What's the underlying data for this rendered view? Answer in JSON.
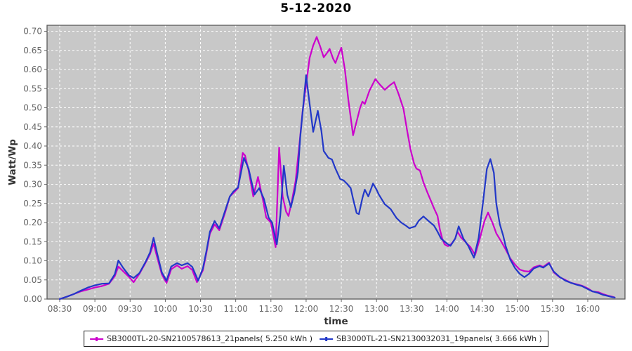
{
  "chart_data": {
    "type": "line",
    "title": "5-12-2020",
    "xlabel": "time",
    "ylabel": "Watt/Wp",
    "x_tick_labels": [
      "08:30",
      "09:00",
      "09:30",
      "10:00",
      "10:30",
      "11:00",
      "11:30",
      "12:00",
      "12:30",
      "13:00",
      "13:30",
      "14:00",
      "14:30",
      "15:00",
      "15:30",
      "16:00"
    ],
    "y_axis": {
      "min": 0.0,
      "max": 0.7,
      "step": 0.05
    },
    "grid": "on",
    "legend_position": "bottom",
    "colors": {
      "plot_background": "#C8C8C8",
      "gridline": "#FFFFFF",
      "axis_border": "#5A5A5A",
      "tick_label": "#666666",
      "axis_title": "#333333",
      "chart_title": "#000000"
    },
    "series": [
      {
        "name": "SB3000TL-20-SN2100578613_21panels( 5.250 kWh )",
        "color": "#CC00CC",
        "points": [
          [
            "08:30",
            0.0
          ],
          [
            "08:36",
            0.006
          ],
          [
            "08:42",
            0.013
          ],
          [
            "08:48",
            0.02
          ],
          [
            "08:54",
            0.025
          ],
          [
            "09:00",
            0.03
          ],
          [
            "09:06",
            0.034
          ],
          [
            "09:12",
            0.04
          ],
          [
            "09:17",
            0.06
          ],
          [
            "09:20",
            0.085
          ],
          [
            "09:24",
            0.073
          ],
          [
            "09:29",
            0.058
          ],
          [
            "09:33",
            0.044
          ],
          [
            "09:38",
            0.066
          ],
          [
            "09:43",
            0.094
          ],
          [
            "09:47",
            0.118
          ],
          [
            "09:50",
            0.145
          ],
          [
            "09:53",
            0.11
          ],
          [
            "09:57",
            0.065
          ],
          [
            "10:01",
            0.042
          ],
          [
            "10:05",
            0.078
          ],
          [
            "10:10",
            0.088
          ],
          [
            "10:14",
            0.079
          ],
          [
            "10:19",
            0.086
          ],
          [
            "10:23",
            0.076
          ],
          [
            "10:27",
            0.044
          ],
          [
            "10:32",
            0.075
          ],
          [
            "10:35",
            0.12
          ],
          [
            "10:38",
            0.171
          ],
          [
            "10:42",
            0.195
          ],
          [
            "10:46",
            0.18
          ],
          [
            "10:51",
            0.226
          ],
          [
            "10:55",
            0.268
          ],
          [
            "10:58",
            0.277
          ],
          [
            "11:02",
            0.29
          ],
          [
            "11:06",
            0.382
          ],
          [
            "11:08",
            0.375
          ],
          [
            "11:11",
            0.336
          ],
          [
            "11:15",
            0.268
          ],
          [
            "11:19",
            0.319
          ],
          [
            "11:23",
            0.262
          ],
          [
            "11:26",
            0.213
          ],
          [
            "11:30",
            0.2
          ],
          [
            "11:34",
            0.136
          ],
          [
            "11:37",
            0.396
          ],
          [
            "11:40",
            0.268
          ],
          [
            "11:43",
            0.228
          ],
          [
            "11:45",
            0.217
          ],
          [
            "11:48",
            0.259
          ],
          [
            "11:51",
            0.308
          ],
          [
            "11:54",
            0.396
          ],
          [
            "11:57",
            0.49
          ],
          [
            "12:00",
            0.56
          ],
          [
            "12:03",
            0.63
          ],
          [
            "12:06",
            0.663
          ],
          [
            "12:09",
            0.685
          ],
          [
            "12:12",
            0.66
          ],
          [
            "12:15",
            0.632
          ],
          [
            "12:18",
            0.644
          ],
          [
            "12:20",
            0.654
          ],
          [
            "12:23",
            0.628
          ],
          [
            "12:25",
            0.617
          ],
          [
            "12:28",
            0.642
          ],
          [
            "12:30",
            0.657
          ],
          [
            "12:33",
            0.6
          ],
          [
            "12:36",
            0.52
          ],
          [
            "12:40",
            0.428
          ],
          [
            "12:43",
            0.464
          ],
          [
            "12:46",
            0.5
          ],
          [
            "12:48",
            0.516
          ],
          [
            "12:50",
            0.51
          ],
          [
            "12:54",
            0.545
          ],
          [
            "12:59",
            0.575
          ],
          [
            "13:03",
            0.56
          ],
          [
            "13:07",
            0.547
          ],
          [
            "13:11",
            0.558
          ],
          [
            "13:15",
            0.567
          ],
          [
            "13:19",
            0.534
          ],
          [
            "13:23",
            0.497
          ],
          [
            "13:26",
            0.442
          ],
          [
            "13:29",
            0.39
          ],
          [
            "13:32",
            0.354
          ],
          [
            "13:34",
            0.341
          ],
          [
            "13:37",
            0.336
          ],
          [
            "13:40",
            0.305
          ],
          [
            "13:43",
            0.281
          ],
          [
            "13:46",
            0.259
          ],
          [
            "13:49",
            0.237
          ],
          [
            "13:52",
            0.217
          ],
          [
            "13:54",
            0.182
          ],
          [
            "13:56",
            0.158
          ],
          [
            "13:58",
            0.143
          ],
          [
            "14:01",
            0.138
          ],
          [
            "14:04",
            0.145
          ],
          [
            "14:07",
            0.158
          ],
          [
            "14:09",
            0.176
          ],
          [
            "14:12",
            0.161
          ],
          [
            "14:15",
            0.152
          ],
          [
            "14:17",
            0.145
          ],
          [
            "14:20",
            0.136
          ],
          [
            "14:24",
            0.115
          ],
          [
            "14:28",
            0.158
          ],
          [
            "14:32",
            0.204
          ],
          [
            "14:35",
            0.226
          ],
          [
            "14:39",
            0.198
          ],
          [
            "14:42",
            0.172
          ],
          [
            "14:46",
            0.152
          ],
          [
            "14:50",
            0.13
          ],
          [
            "14:54",
            0.106
          ],
          [
            "14:58",
            0.09
          ],
          [
            "15:02",
            0.077
          ],
          [
            "15:06",
            0.073
          ],
          [
            "15:10",
            0.072
          ],
          [
            "15:14",
            0.083
          ],
          [
            "15:19",
            0.088
          ],
          [
            "15:22",
            0.084
          ],
          [
            "15:27",
            0.095
          ],
          [
            "15:31",
            0.07
          ],
          [
            "15:36",
            0.057
          ],
          [
            "15:41",
            0.05
          ],
          [
            "15:46",
            0.042
          ],
          [
            "15:50",
            0.039
          ],
          [
            "15:55",
            0.035
          ],
          [
            "16:00",
            0.028
          ],
          [
            "16:04",
            0.02
          ],
          [
            "16:09",
            0.018
          ],
          [
            "16:13",
            0.013
          ],
          [
            "16:17",
            0.009
          ],
          [
            "16:21",
            0.006
          ],
          [
            "16:23",
            0.004
          ]
        ]
      },
      {
        "name": "SB3000TL-21-SN2130032031_19panels( 3.666 kWh )",
        "color": "#2238C8",
        "points": [
          [
            "08:30",
            0.0
          ],
          [
            "08:36",
            0.006
          ],
          [
            "08:42",
            0.013
          ],
          [
            "08:48",
            0.022
          ],
          [
            "08:54",
            0.03
          ],
          [
            "09:00",
            0.036
          ],
          [
            "09:06",
            0.04
          ],
          [
            "09:12",
            0.041
          ],
          [
            "09:17",
            0.065
          ],
          [
            "09:20",
            0.101
          ],
          [
            "09:24",
            0.082
          ],
          [
            "09:29",
            0.062
          ],
          [
            "09:33",
            0.055
          ],
          [
            "09:38",
            0.068
          ],
          [
            "09:43",
            0.096
          ],
          [
            "09:47",
            0.122
          ],
          [
            "09:50",
            0.16
          ],
          [
            "09:53",
            0.12
          ],
          [
            "09:57",
            0.07
          ],
          [
            "10:01",
            0.048
          ],
          [
            "10:05",
            0.085
          ],
          [
            "10:10",
            0.094
          ],
          [
            "10:14",
            0.088
          ],
          [
            "10:19",
            0.094
          ],
          [
            "10:23",
            0.084
          ],
          [
            "10:28",
            0.048
          ],
          [
            "10:32",
            0.08
          ],
          [
            "10:35",
            0.125
          ],
          [
            "10:38",
            0.176
          ],
          [
            "10:42",
            0.204
          ],
          [
            "10:46",
            0.185
          ],
          [
            "10:51",
            0.231
          ],
          [
            "10:55",
            0.268
          ],
          [
            "10:58",
            0.281
          ],
          [
            "11:02",
            0.292
          ],
          [
            "11:07",
            0.369
          ],
          [
            "11:11",
            0.341
          ],
          [
            "11:16",
            0.273
          ],
          [
            "11:20",
            0.29
          ],
          [
            "11:24",
            0.262
          ],
          [
            "11:28",
            0.213
          ],
          [
            "11:31",
            0.2
          ],
          [
            "11:35",
            0.143
          ],
          [
            "11:38",
            0.22
          ],
          [
            "11:41",
            0.349
          ],
          [
            "11:44",
            0.272
          ],
          [
            "11:47",
            0.24
          ],
          [
            "11:50",
            0.277
          ],
          [
            "11:53",
            0.332
          ],
          [
            "11:55",
            0.424
          ],
          [
            "11:58",
            0.52
          ],
          [
            "12:00",
            0.585
          ],
          [
            "12:02",
            0.534
          ],
          [
            "12:06",
            0.437
          ],
          [
            "12:10",
            0.492
          ],
          [
            "12:13",
            0.439
          ],
          [
            "12:15",
            0.387
          ],
          [
            "12:19",
            0.369
          ],
          [
            "12:22",
            0.365
          ],
          [
            "12:25",
            0.341
          ],
          [
            "12:29",
            0.314
          ],
          [
            "12:32",
            0.31
          ],
          [
            "12:35",
            0.301
          ],
          [
            "12:38",
            0.29
          ],
          [
            "12:40",
            0.262
          ],
          [
            "12:43",
            0.225
          ],
          [
            "12:45",
            0.222
          ],
          [
            "12:48",
            0.264
          ],
          [
            "12:50",
            0.286
          ],
          [
            "12:53",
            0.268
          ],
          [
            "12:57",
            0.302
          ],
          [
            "13:00",
            0.286
          ],
          [
            "13:02",
            0.273
          ],
          [
            "13:07",
            0.248
          ],
          [
            "13:12",
            0.235
          ],
          [
            "13:17",
            0.212
          ],
          [
            "13:21",
            0.2
          ],
          [
            "13:25",
            0.192
          ],
          [
            "13:28",
            0.185
          ],
          [
            "13:33",
            0.19
          ],
          [
            "13:36",
            0.205
          ],
          [
            "13:40",
            0.216
          ],
          [
            "13:44",
            0.205
          ],
          [
            "13:49",
            0.192
          ],
          [
            "13:52",
            0.176
          ],
          [
            "13:55",
            0.158
          ],
          [
            "14:00",
            0.145
          ],
          [
            "14:03",
            0.139
          ],
          [
            "14:07",
            0.158
          ],
          [
            "14:10",
            0.19
          ],
          [
            "14:14",
            0.158
          ],
          [
            "14:18",
            0.14
          ],
          [
            "14:23",
            0.108
          ],
          [
            "14:27",
            0.16
          ],
          [
            "14:31",
            0.26
          ],
          [
            "14:34",
            0.34
          ],
          [
            "14:37",
            0.366
          ],
          [
            "14:40",
            0.33
          ],
          [
            "14:42",
            0.25
          ],
          [
            "14:45",
            0.196
          ],
          [
            "14:48",
            0.165
          ],
          [
            "14:50",
            0.139
          ],
          [
            "14:54",
            0.103
          ],
          [
            "14:58",
            0.081
          ],
          [
            "15:02",
            0.066
          ],
          [
            "15:06",
            0.057
          ],
          [
            "15:10",
            0.066
          ],
          [
            "15:14",
            0.08
          ],
          [
            "15:19",
            0.086
          ],
          [
            "15:22",
            0.082
          ],
          [
            "15:27",
            0.093
          ],
          [
            "15:31",
            0.072
          ],
          [
            "15:36",
            0.058
          ],
          [
            "15:41",
            0.048
          ],
          [
            "15:46",
            0.042
          ],
          [
            "15:50",
            0.038
          ],
          [
            "15:55",
            0.034
          ],
          [
            "16:00",
            0.026
          ],
          [
            "16:04",
            0.02
          ],
          [
            "16:09",
            0.016
          ],
          [
            "16:13",
            0.011
          ],
          [
            "16:17",
            0.008
          ],
          [
            "16:21",
            0.005
          ],
          [
            "16:23",
            0.004
          ]
        ]
      }
    ]
  }
}
